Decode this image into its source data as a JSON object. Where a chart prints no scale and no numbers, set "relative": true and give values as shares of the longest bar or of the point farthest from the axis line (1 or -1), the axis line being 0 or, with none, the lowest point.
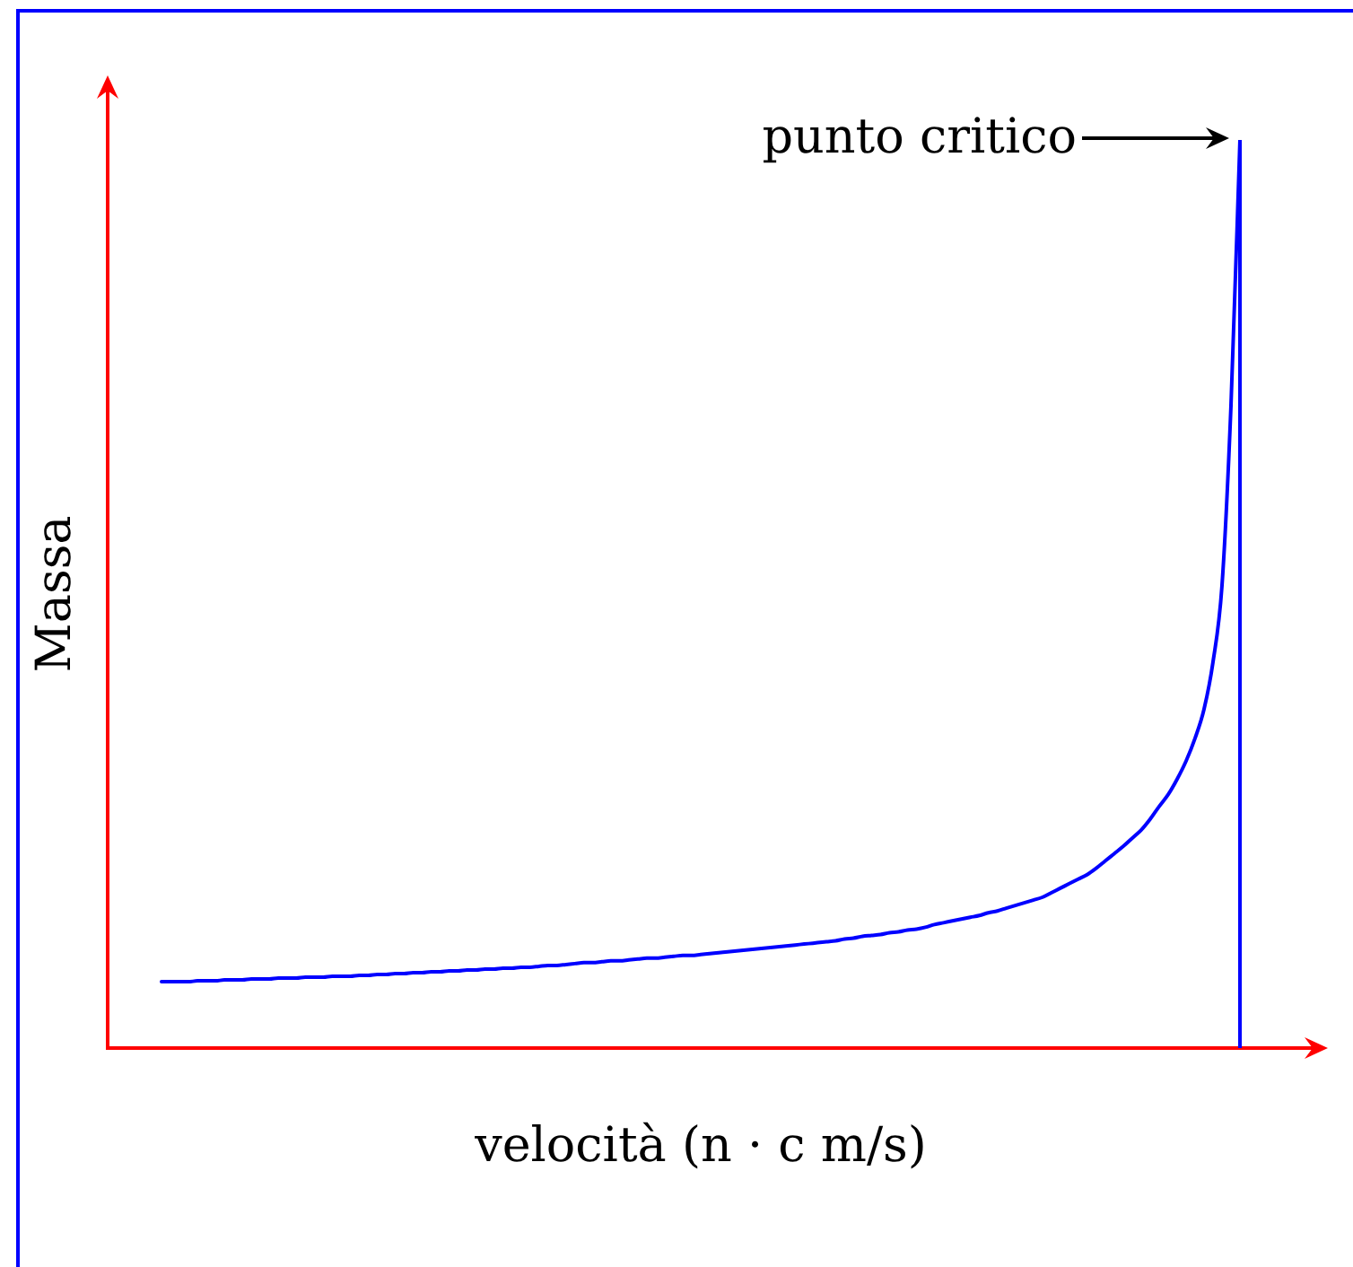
{
  "chart_data": {
    "type": "line",
    "xlabel": "velocità (n · c m/s)",
    "ylabel": "Massa",
    "relative": true,
    "categories": [
      null,
      null,
      null,
      null,
      null,
      null,
      null,
      null,
      null,
      null,
      null,
      null,
      null,
      null,
      null,
      null,
      null,
      null,
      null,
      null,
      null,
      null,
      null,
      null,
      null,
      null,
      null,
      null,
      null,
      null,
      null,
      null,
      null,
      null,
      null,
      null,
      null,
      null,
      null,
      null,
      null,
      null,
      null,
      null,
      null,
      null,
      null,
      null,
      null,
      null,
      null,
      null,
      null,
      null,
      null,
      null,
      null,
      null,
      null,
      null,
      null,
      null,
      null,
      null,
      null,
      null,
      null,
      null,
      null,
      null,
      null,
      null,
      null,
      null,
      null,
      null,
      null,
      null,
      null,
      null,
      null,
      null,
      null,
      null,
      null,
      null,
      null,
      null,
      null,
      null,
      null,
      null,
      null,
      null,
      null,
      null,
      null,
      null,
      null,
      null,
      null,
      null,
      null,
      null,
      null,
      null,
      null,
      null,
      null,
      null,
      null,
      null,
      null,
      null,
      null,
      null,
      null,
      null,
      null,
      null,
      null
    ],
    "values": [
      0.073,
      0.073,
      0.073,
      0.073,
      0.074,
      0.074,
      0.074,
      0.075,
      0.075,
      0.075,
      0.076,
      0.076,
      0.076,
      0.077,
      0.077,
      0.077,
      0.078,
      0.078,
      0.078,
      0.079,
      0.079,
      0.079,
      0.08,
      0.08,
      0.081,
      0.081,
      0.082,
      0.082,
      0.083,
      0.083,
      0.084,
      0.084,
      0.085,
      0.085,
      0.086,
      0.086,
      0.087,
      0.087,
      0.088,
      0.088,
      0.089,
      0.089,
      0.09,
      0.091,
      0.091,
      0.092,
      0.093,
      0.094,
      0.094,
      0.095,
      0.096,
      0.096,
      0.097,
      0.098,
      0.099,
      0.099,
      0.1,
      0.101,
      0.102,
      0.102,
      0.103,
      0.104,
      0.105,
      0.106,
      0.107,
      0.108,
      0.109,
      0.11,
      0.111,
      0.112,
      0.113,
      0.114,
      0.115,
      0.116,
      0.117,
      0.118,
      0.12,
      0.121,
      0.123,
      0.124,
      0.125,
      0.127,
      0.128,
      0.13,
      0.131,
      0.133,
      0.136,
      0.138,
      0.14,
      0.142,
      0.144,
      0.146,
      0.149,
      0.151,
      0.154,
      0.157,
      0.16,
      0.163,
      0.166,
      0.171,
      0.176,
      0.181,
      0.186,
      0.191,
      0.198,
      0.206,
      0.214,
      0.222,
      0.231,
      0.24,
      0.252,
      0.266,
      0.279,
      0.296,
      0.316,
      0.341,
      0.373,
      0.425,
      0.509,
      0.707,
      1
    ],
    "color": "#0000ff",
    "annotations": [
      "punto critico"
    ]
  }
}
